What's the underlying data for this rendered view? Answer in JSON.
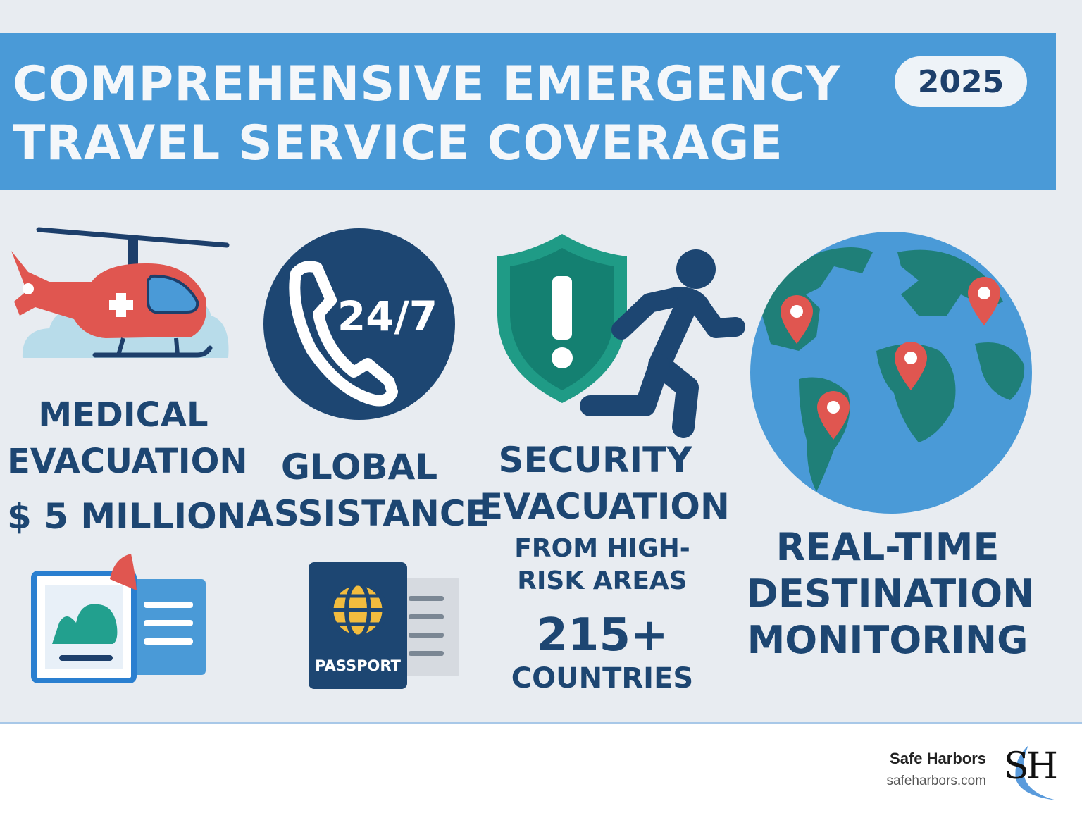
{
  "header": {
    "title_line1": "COMPREHENSIVE EMERGENCY",
    "title_line2": "TRAVEL SERVICE COVERAGE",
    "year": "2025"
  },
  "features": {
    "medical": {
      "line1": "MEDICAL",
      "line2": "EVACUATION",
      "amount": "$ 5 MILLION"
    },
    "assistance": {
      "badge": "24/7",
      "line1": "GLOBAL",
      "line2": "ASSISTANCE"
    },
    "security": {
      "line1": "SECURITY",
      "line2": "EVACUATION",
      "sub1": "FROM HIGH-",
      "sub2": "RISK AREAS",
      "count": "215+",
      "count_label": "COUNTRIES"
    },
    "monitoring": {
      "line1": "REAL-TIME",
      "line2": "DESTINATION",
      "line3": "MONITORING"
    }
  },
  "documents": {
    "passport_label": "PASSPORT"
  },
  "footer": {
    "brand_name": "Safe Harbors",
    "brand_url": "safeharbors.com",
    "logo_text": "SH"
  },
  "icons": [
    "helicopter-icon",
    "phone-icon",
    "shield-alert-icon",
    "running-person-icon",
    "globe-icon",
    "map-pin-icon",
    "document-icon",
    "passport-icon"
  ],
  "colors": {
    "banner": "#4a9ad7",
    "navy": "#1d4672",
    "red": "#e05650",
    "teal": "#1f9b86",
    "globe_blue": "#4a9ad7"
  }
}
